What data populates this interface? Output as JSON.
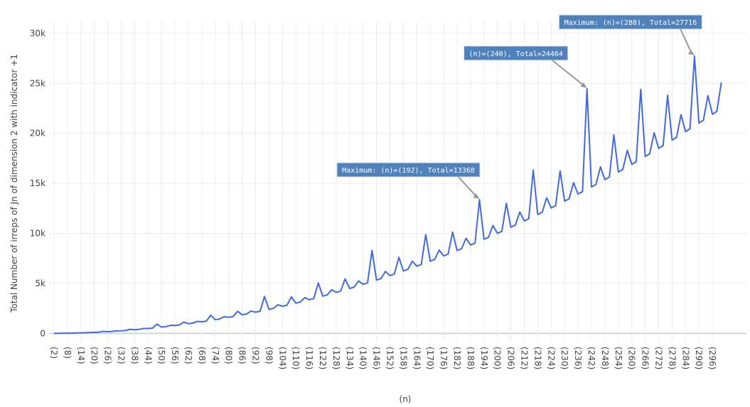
{
  "chart_data": {
    "type": "line",
    "y_label": "Total Number of irreps of Jn of dimension 2 with indicator +1",
    "x_label": "(n)",
    "categories": [
      "(2)",
      null,
      null,
      "(8)",
      null,
      null,
      "(14)",
      null,
      null,
      "(20)",
      null,
      null,
      "(26)",
      null,
      null,
      "(32)",
      null,
      null,
      "(38)",
      null,
      null,
      "(44)",
      null,
      null,
      "(50)",
      null,
      null,
      "(56)",
      null,
      null,
      "(62)",
      null,
      null,
      "(68)",
      null,
      null,
      "(74)",
      null,
      null,
      "(80)",
      null,
      null,
      "(86)",
      null,
      null,
      "(92)",
      null,
      null,
      "(98)",
      null,
      null,
      "(104)",
      null,
      null,
      "(110)",
      null,
      null,
      "(116)",
      null,
      null,
      "(122)",
      null,
      null,
      "(128)",
      null,
      null,
      "(134)",
      null,
      null,
      "(140)",
      null,
      null,
      "(146)",
      null,
      null,
      "(152)",
      null,
      null,
      "(158)",
      null,
      null,
      "(164)",
      null,
      null,
      "(170)",
      null,
      null,
      "(176)",
      null,
      null,
      "(182)",
      null,
      null,
      "(188)",
      null,
      null,
      "(194)",
      null,
      null,
      "(200)",
      null,
      null,
      "(206)",
      null,
      null,
      "(212)",
      null,
      null,
      "(218)",
      null,
      null,
      "(224)",
      null,
      null,
      "(230)",
      null,
      null,
      "(236)",
      null,
      null,
      "(242)",
      null,
      null,
      "(248)",
      null,
      null,
      "(254)",
      null,
      null,
      "(260)",
      null,
      null,
      "(266)",
      null,
      null,
      "(272)",
      null,
      null,
      "(278)",
      null,
      null,
      "(284)",
      null,
      null,
      "(290)",
      null,
      null,
      "(296)",
      null,
      null
    ],
    "values": [
      1,
      4,
      10,
      16,
      25,
      45,
      49,
      64,
      89,
      100,
      121,
      202,
      169,
      196,
      248,
      256,
      289,
      405,
      361,
      400,
      485,
      484,
      529,
      922,
      625,
      676,
      802,
      784,
      841,
      1125,
      961,
      1024,
      1198,
      1156,
      1225,
      1814,
      1369,
      1444,
      1673,
      1600,
      1681,
      2205,
      1849,
      1936,
      2228,
      2116,
      2209,
      3686,
      2401,
      2500,
      2861,
      2704,
      2809,
      3645,
      3025,
      3136,
      3574,
      3364,
      3481,
      5040,
      3721,
      3844,
      4366,
      4096,
      4225,
      5445,
      4489,
      4624,
      5237,
      4900,
      5041,
      8294,
      5329,
      5476,
      6188,
      5776,
      5929,
      7605,
      6241,
      6400,
      7217,
      6724,
      6889,
      9878,
      7225,
      7396,
      8326,
      7744,
      7921,
      10125,
      8281,
      8464,
      9514,
      8836,
      9025,
      13368,
      9409,
      9604,
      10781,
      10000,
      10201,
      13005,
      10609,
      10816,
      12128,
      11236,
      11449,
      16330,
      11881,
      12100,
      13553,
      12544,
      12769,
      16245,
      13225,
      13456,
      15058,
      13924,
      14161,
      24464,
      14641,
      14884,
      16642,
      15376,
      15625,
      19845,
      16129,
      16384,
      18305,
      16900,
      17161,
      24394,
      17689,
      17956,
      20048,
      18496,
      18769,
      23805,
      19321,
      19600,
      21869,
      20164,
      20449,
      27716,
      21025,
      21316,
      23770,
      21904,
      22201,
      25100
    ],
    "color": "#4169e1",
    "ylim": [
      -900,
      31200
    ],
    "yticks": [
      0,
      {
        "value": 5000,
        "label": "5k"
      },
      {
        "value": 10000,
        "label": "10k"
      },
      {
        "value": 15000,
        "label": "15k"
      },
      {
        "value": 20000,
        "label": "20k"
      },
      {
        "value": 25000,
        "label": "25k"
      },
      {
        "value": 30000,
        "label": "30k"
      }
    ],
    "grid": true,
    "annotations": [
      {
        "text": "Maximum: (n)=(192), Total=13368",
        "x": 192,
        "y": 13368
      },
      {
        "text": "(n)=(240), Total=24464",
        "x": 240,
        "y": 24464
      },
      {
        "text": "Maximum: (n)=(288), Total=27716",
        "x": 288,
        "y": 27716
      }
    ]
  }
}
